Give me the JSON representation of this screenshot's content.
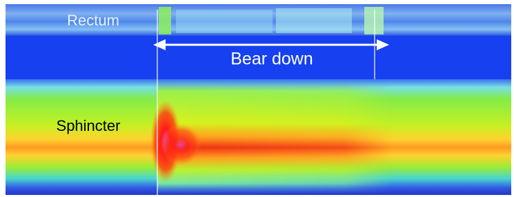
{
  "labels": {
    "rectum": "Rectum",
    "event": "Bear down",
    "sphincter": "Sphincter"
  }
}
